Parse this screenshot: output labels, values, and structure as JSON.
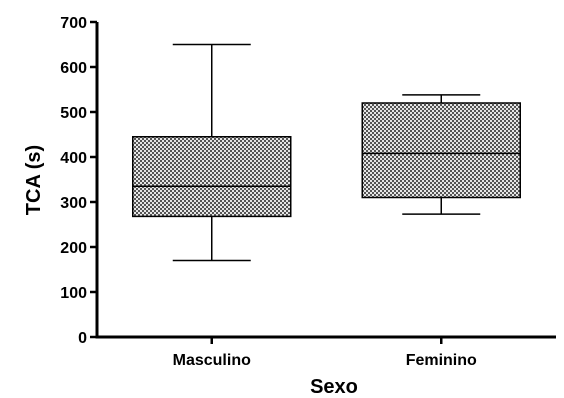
{
  "chart_data": {
    "type": "box",
    "xlabel": "Sexo",
    "ylabel": "TCA (s)",
    "ylim": [
      0,
      700
    ],
    "yticks": [
      0,
      100,
      200,
      300,
      400,
      500,
      600,
      700
    ],
    "grid": false,
    "categories": [
      "Masculino",
      "Feminino"
    ],
    "boxes": [
      {
        "category": "Masculino",
        "min": 170,
        "q1": 268,
        "median": 335,
        "q3": 445,
        "max": 650
      },
      {
        "category": "Feminino",
        "min": 273,
        "q1": 310,
        "median": 408,
        "q3": 520,
        "max": 538
      }
    ]
  }
}
